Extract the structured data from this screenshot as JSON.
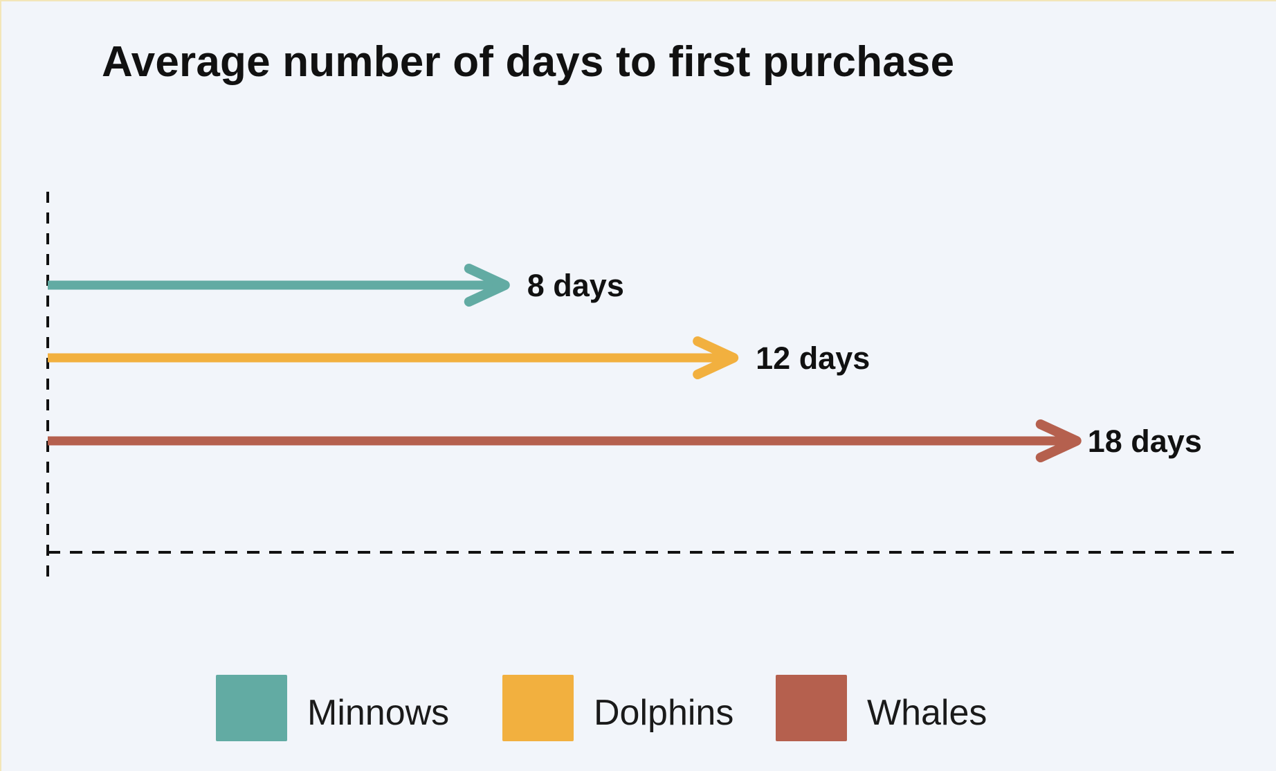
{
  "chart_data": {
    "type": "bar",
    "orientation": "horizontal",
    "mark": "arrow",
    "title": "Average number of days to first purchase",
    "xlabel": "",
    "ylabel": "",
    "xlim": [
      0,
      20.8
    ],
    "grid": false,
    "legend_position": "bottom-center",
    "series": [
      {
        "name": "Minnows",
        "value": 8,
        "label": "8 days",
        "color": "#62aba3"
      },
      {
        "name": "Dolphins",
        "value": 12,
        "label": "12 days",
        "color": "#f2b03f"
      },
      {
        "name": "Whales",
        "value": 18,
        "label": "18 days",
        "color": "#b5604e"
      }
    ]
  }
}
